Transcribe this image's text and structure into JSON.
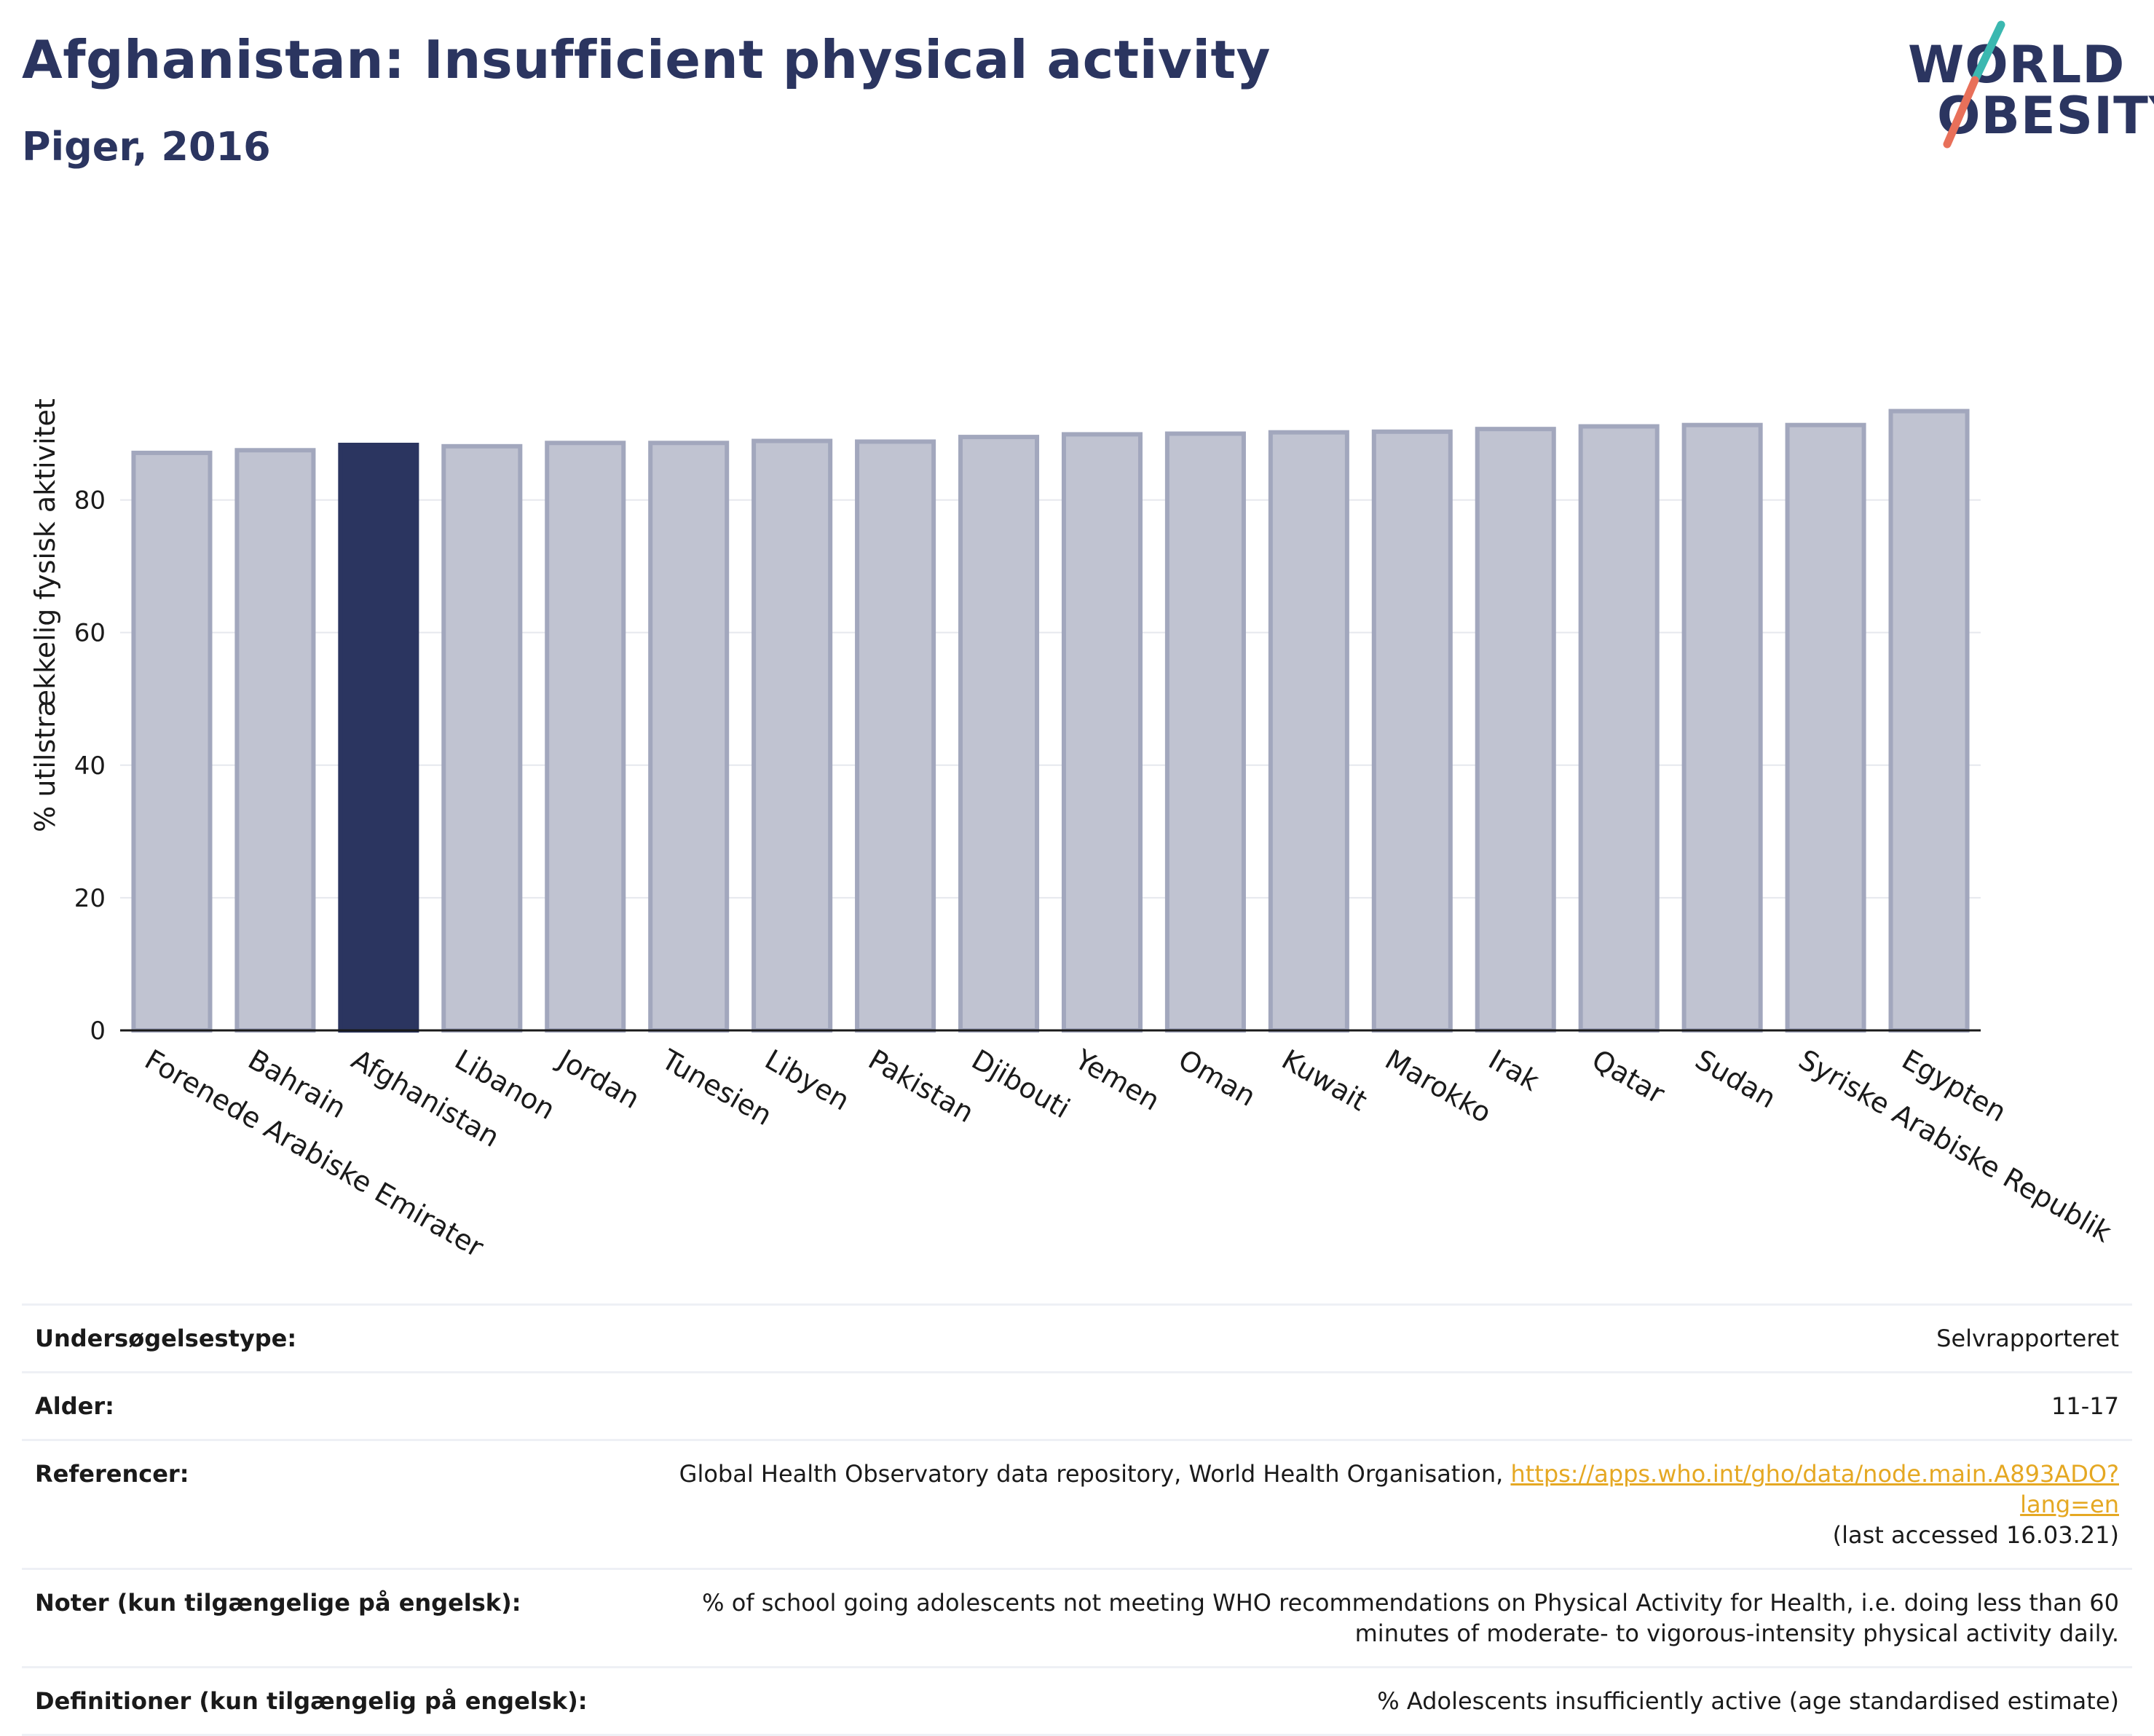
{
  "header": {
    "title": "Afghanistan: Insufficient physical activity",
    "subtitle": "Piger, 2016"
  },
  "logo": {
    "line1": "WORLD",
    "line2": "OBESITY",
    "colors": {
      "text": "#2b3560",
      "slash_top": "#3bb8b0",
      "slash_bottom": "#e8705a"
    }
  },
  "chart_data": {
    "type": "bar",
    "title": "",
    "xlabel": "",
    "ylabel": "% utilstrækkelig fysisk aktivitet",
    "ylim": [
      0,
      95
    ],
    "yticks": [
      0,
      20,
      40,
      60,
      80
    ],
    "grid": true,
    "highlight_category": "Afghanistan",
    "colors": {
      "bar": "#c0c3d1",
      "bar_border": "#a2a7bd",
      "highlight": "#2b3560",
      "grid": "#e6e8ee"
    },
    "categories": [
      "Forenede Arabiske Emirater",
      "Bahrain",
      "Afghanistan",
      "Libanon",
      "Jordan",
      "Tunesien",
      "Libyen",
      "Pakistan",
      "Djibouti",
      "Yemen",
      "Oman",
      "Kuwait",
      "Marokko",
      "Irak",
      "Qatar",
      "Sudan",
      "Syriske Arabiske Republik",
      "Egypten"
    ],
    "values": [
      87.1,
      87.5,
      88.3,
      88.1,
      88.6,
      88.6,
      88.9,
      88.8,
      89.5,
      89.9,
      90.0,
      90.2,
      90.3,
      90.7,
      91.1,
      91.3,
      91.3,
      93.4
    ]
  },
  "meta": {
    "rows": [
      {
        "label": "Undersøgelsestype:",
        "value": "Selvrapporteret"
      },
      {
        "label": "Alder:",
        "value": "11-17"
      },
      {
        "label": "Referencer:",
        "value_prefix": "Global Health Observatory data repository, World Health Organisation, ",
        "link": "https://apps.who.int/gho/data/node.main.A893ADO?lang=en",
        "value_suffix": "(last accessed 16.03.21)"
      },
      {
        "label": "Noter (kun tilgængelige på engelsk):",
        "value": "% of school going adolescents not meeting WHO recommendations on Physical Activity for Health, i.e. doing less than 60 minutes of moderate- to vigorous-intensity physical activity daily."
      },
      {
        "label": "Definitioner (kun tilgængelig på engelsk):",
        "value": "% Adolescents insufficiently active (age standardised estimate)"
      }
    ]
  }
}
